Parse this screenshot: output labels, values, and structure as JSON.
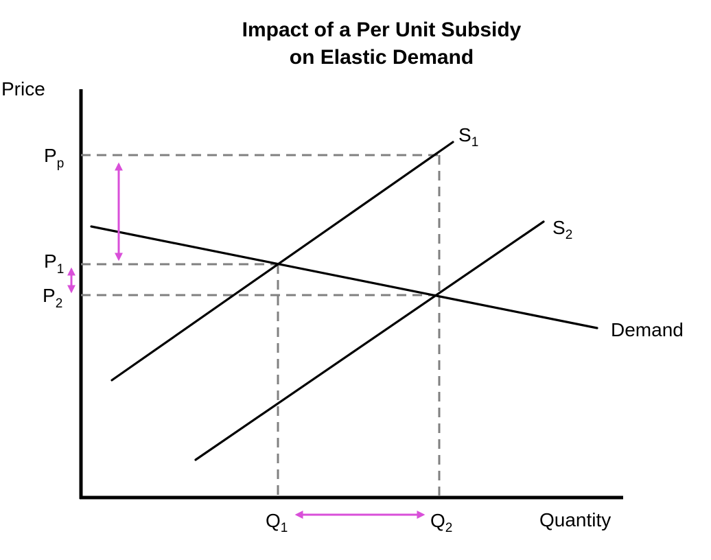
{
  "title": {
    "line1": "Impact of a Per Unit Subsidy",
    "line2": "on Elastic Demand"
  },
  "axes": {
    "y_label": "Price",
    "x_label": "Quantity"
  },
  "curves": {
    "s1": {
      "letter": "S",
      "sub": "1"
    },
    "s2": {
      "letter": "S",
      "sub": "2"
    },
    "demand": "Demand"
  },
  "price_labels": {
    "pp": {
      "letter": "P",
      "sub": "p"
    },
    "p1": {
      "letter": "P",
      "sub": "1"
    },
    "p2": {
      "letter": "P",
      "sub": "2"
    }
  },
  "quantity_labels": {
    "q1": {
      "letter": "Q",
      "sub": "1"
    },
    "q2": {
      "letter": "Q",
      "sub": "2"
    }
  },
  "colors": {
    "curves": "#000000",
    "guides": "#808080",
    "arrows": "#d94fd9"
  }
}
